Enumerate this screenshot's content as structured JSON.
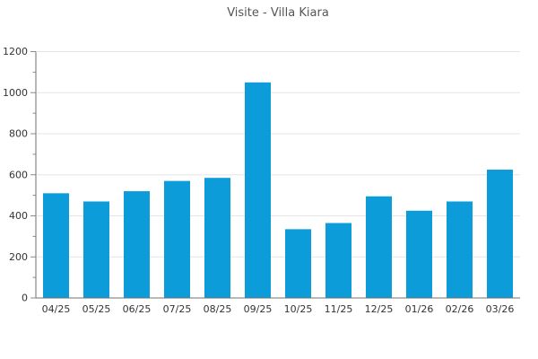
{
  "chart_data": {
    "type": "bar",
    "title": "Visite - Villa Kiara",
    "categories": [
      "04/25",
      "05/25",
      "06/25",
      "07/25",
      "08/25",
      "09/25",
      "10/25",
      "11/25",
      "12/25",
      "01/26",
      "02/26",
      "03/26"
    ],
    "values": [
      510,
      470,
      520,
      570,
      585,
      1050,
      335,
      365,
      495,
      425,
      470,
      625
    ],
    "series_name": "Visite",
    "xlabel": "",
    "ylabel": "",
    "ylim": [
      0,
      1200
    ],
    "ytick_step": 200,
    "yminor_step": 100,
    "ytick_labels": [
      "0",
      "200",
      "400",
      "600",
      "800",
      "1000",
      "1200"
    ],
    "grid": "horizontal-major",
    "legend": "none",
    "colors": {
      "bar": "#0c9cd9",
      "grid": "#e5e5e5",
      "axis": "#707070",
      "tick": "#8c8c8c",
      "tick_label": "#333333",
      "title": "#555555",
      "background": "#ffffff"
    }
  }
}
